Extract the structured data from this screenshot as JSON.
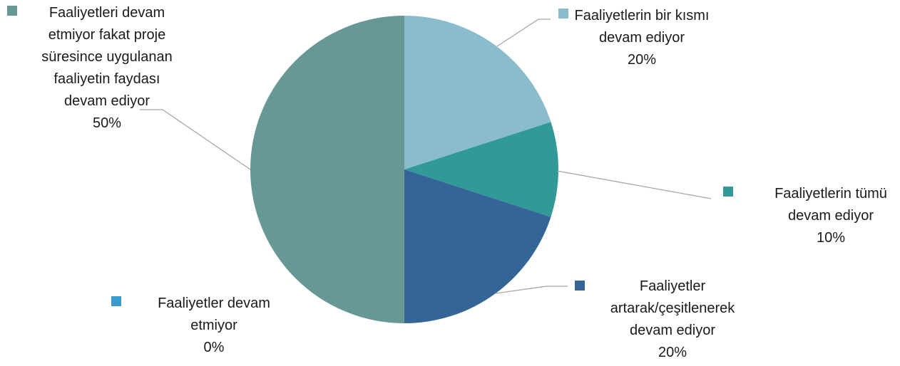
{
  "chart_data": {
    "type": "pie",
    "title": "",
    "slices": [
      {
        "label_lines": [
          "Faaliyetlerin bir kısmı",
          "devam ediyor"
        ],
        "value": 20,
        "percent_label": "20%",
        "color": "#8bbccc"
      },
      {
        "label_lines": [
          "Faaliyetlerin tümü",
          "devam ediyor"
        ],
        "value": 10,
        "percent_label": "10%",
        "color": "#319a98"
      },
      {
        "label_lines": [
          "Faaliyetler",
          "artarak/çeşitlenerek",
          "devam ediyor"
        ],
        "value": 20,
        "percent_label": "20%",
        "color": "#336597"
      },
      {
        "label_lines": [
          "Faaliyetler devam",
          "etmiyor"
        ],
        "value": 0,
        "percent_label": "0%",
        "color": "#3c9bcc"
      },
      {
        "label_lines": [
          "Faaliyetleri devam",
          "etmiyor fakat proje",
          "süresince uygulanan",
          "faaliyetin faydası",
          "devam ediyor"
        ],
        "value": 50,
        "percent_label": "50%",
        "color": "#679896"
      }
    ],
    "start_angle_deg": 0,
    "direction": "clockwise",
    "legend": "none (labels with leader lines)"
  }
}
